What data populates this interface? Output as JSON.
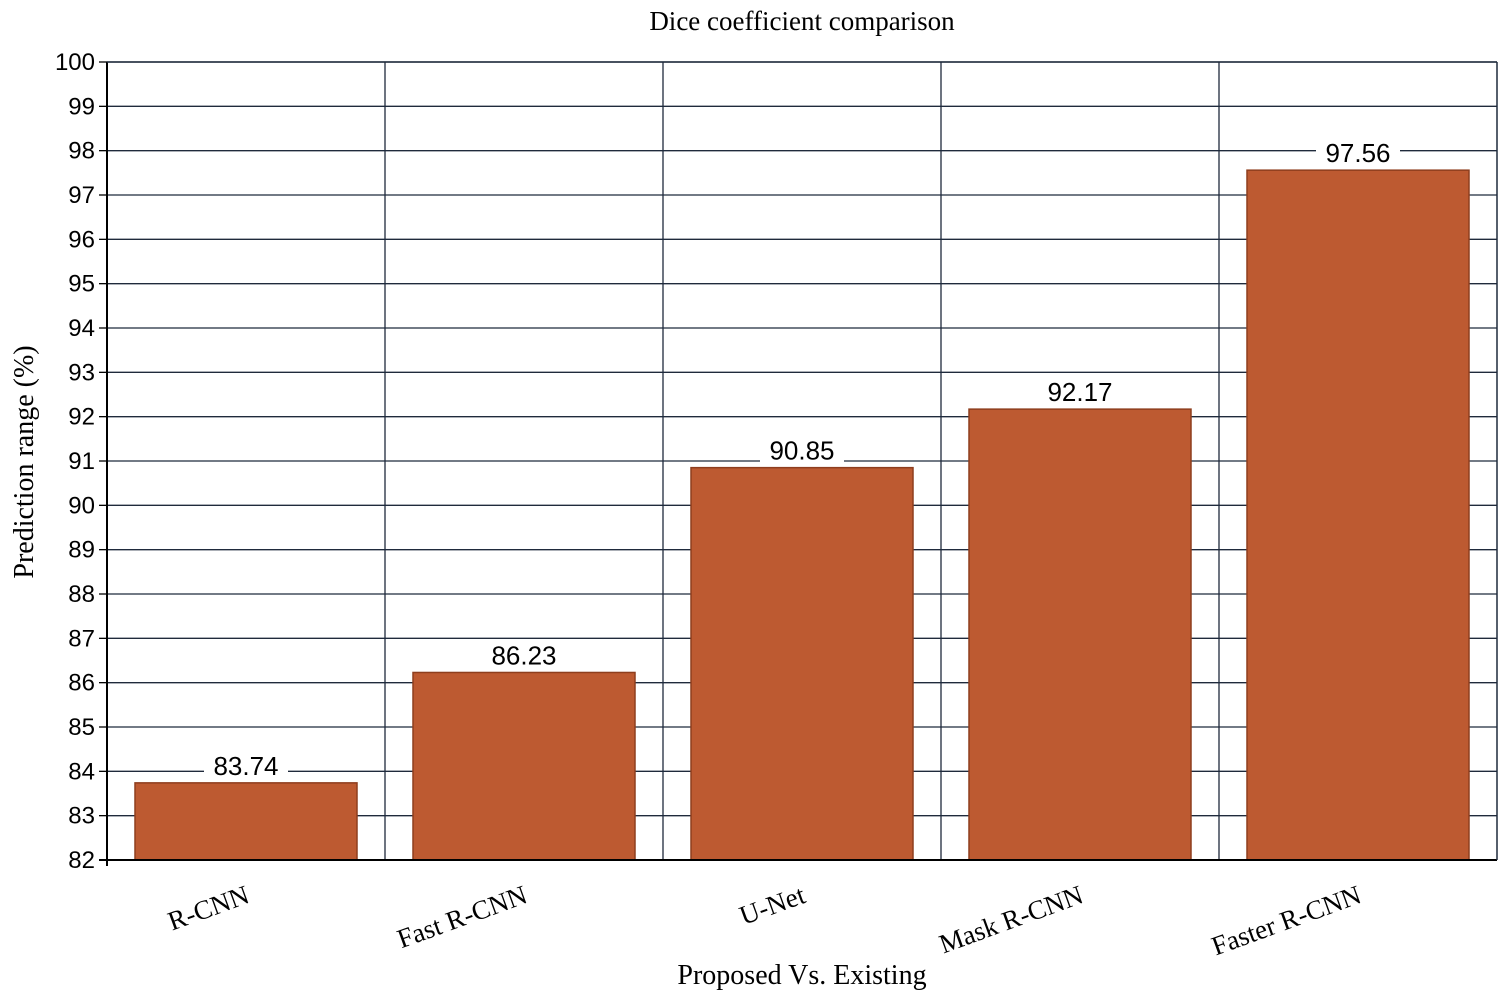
{
  "chart_data": {
    "type": "bar",
    "title": "Dice coefficient comparison",
    "xlabel": "Proposed Vs. Existing",
    "ylabel": "Prediction range (%)",
    "categories": [
      "R-CNN",
      "Fast R-CNN",
      "U-Net",
      "Mask R-CNN",
      "Faster R-CNN"
    ],
    "values": [
      83.74,
      86.23,
      90.85,
      92.17,
      97.56
    ],
    "data_labels": [
      "83.74",
      "86.23",
      "90.85",
      "92.17",
      "97.56"
    ],
    "ylim": [
      82,
      100
    ],
    "yticks": [
      "82",
      "83",
      "84",
      "85",
      "86",
      "87",
      "88",
      "89",
      "90",
      "91",
      "92",
      "93",
      "94",
      "95",
      "96",
      "97",
      "98",
      "99",
      "100"
    ],
    "grid": true,
    "legend": "none",
    "bar_color": "#BD5A31",
    "bar_edge_color": "#8E3E1E",
    "grid_color": "#1F2A3C"
  }
}
